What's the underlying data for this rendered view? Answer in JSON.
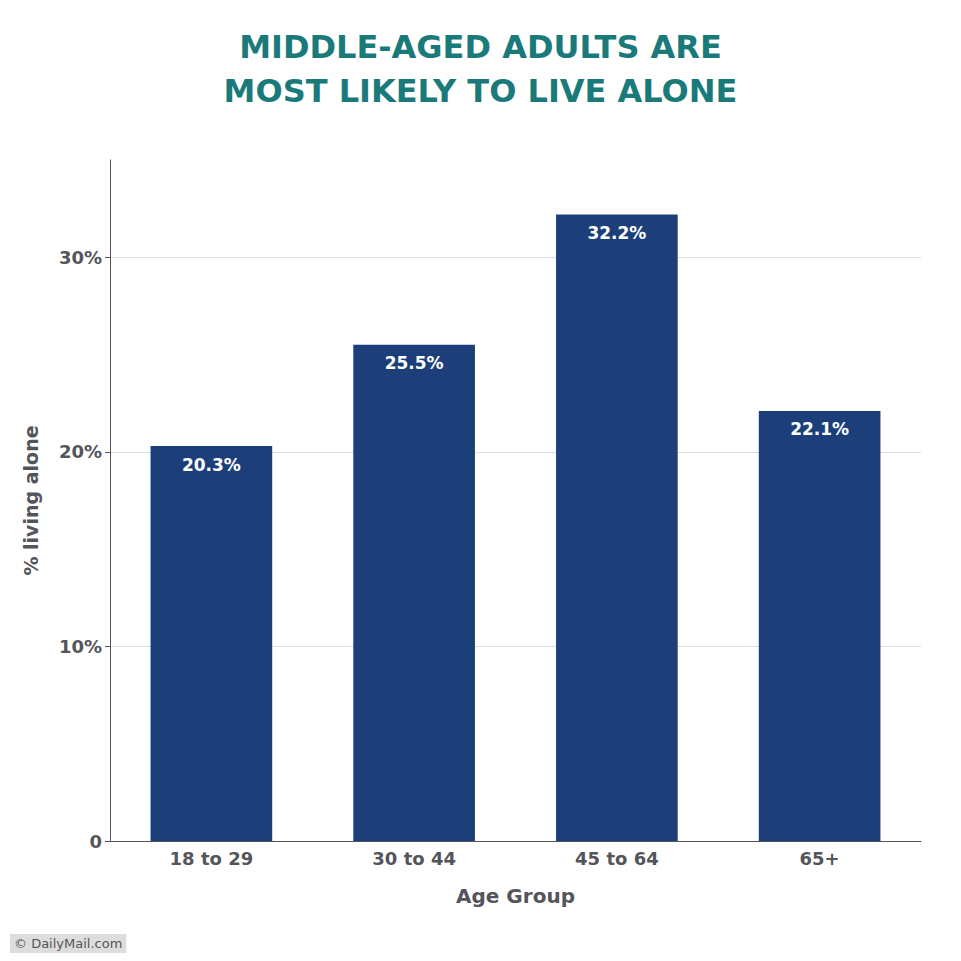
{
  "chart_data": {
    "type": "bar",
    "title": "MIDDLE-AGED ADULTS ARE\nMOST LIKELY TO LIVE ALONE",
    "categories": [
      "18 to 29",
      "30 to 44",
      "45 to 64",
      "65+"
    ],
    "values": [
      20.3,
      25.5,
      32.2,
      22.1
    ],
    "value_labels": [
      "20.3%",
      "25.5%",
      "32.2%",
      "22.1%"
    ],
    "data_labels": true,
    "color": "#1c3f7a",
    "xlabel": "Age Group",
    "ylabel": "% living alone",
    "ylim": [
      0,
      35
    ],
    "yticks": [
      0,
      {
        "value": 10,
        "label": "10%"
      },
      {
        "value": 20,
        "label": "20%"
      },
      {
        "value": 30,
        "label": "30%"
      }
    ],
    "grid": true,
    "annotations": [
      "© DailyMail.com"
    ]
  }
}
